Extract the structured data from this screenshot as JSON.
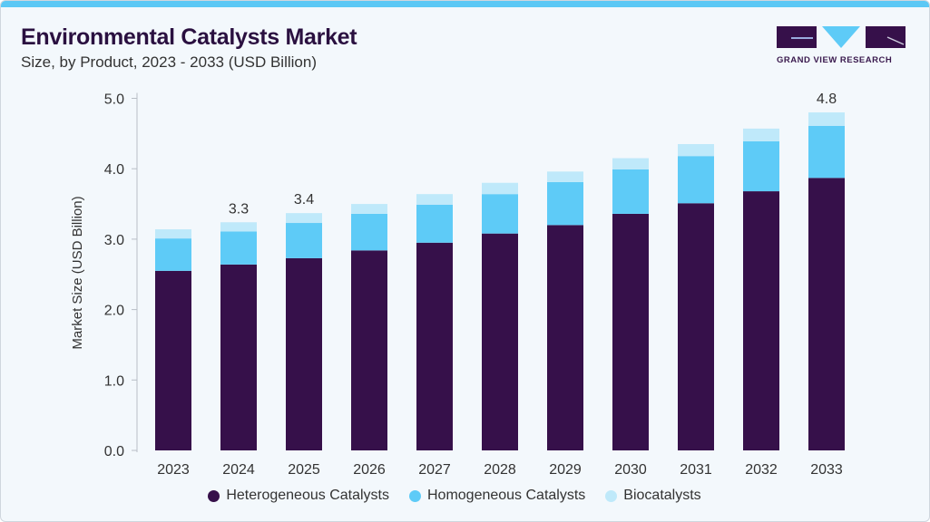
{
  "header": {
    "title": "Environmental Catalysts Market",
    "subtitle": "Size, by Product, 2023 - 2033 (USD Billion)"
  },
  "logo": {
    "text": "GRAND VIEW RESEARCH"
  },
  "chart_data": {
    "type": "bar",
    "stacked": true,
    "title": "Environmental Catalysts Market",
    "subtitle": "Size, by Product, 2023 - 2033 (USD Billion)",
    "xlabel": "",
    "ylabel": "Market Size (USD Billion)",
    "ylim": [
      0,
      5
    ],
    "yticks": [
      "0.0",
      "1.0",
      "2.0",
      "3.0",
      "4.0",
      "5.0"
    ],
    "categories": [
      "2023",
      "2024",
      "2025",
      "2026",
      "2027",
      "2028",
      "2029",
      "2030",
      "2031",
      "2032",
      "2033"
    ],
    "series": [
      {
        "name": "Heterogeneous Catalysts",
        "color": "#36104a",
        "values": [
          2.55,
          2.64,
          2.73,
          2.84,
          2.95,
          3.08,
          3.2,
          3.36,
          3.51,
          3.68,
          3.87
        ]
      },
      {
        "name": "Homogeneous Catalysts",
        "color": "#5ecbf7",
        "values": [
          0.46,
          0.47,
          0.5,
          0.52,
          0.54,
          0.56,
          0.61,
          0.63,
          0.67,
          0.71,
          0.74
        ]
      },
      {
        "name": "Biocatalysts",
        "color": "#bfe9fa",
        "values": [
          0.13,
          0.13,
          0.14,
          0.14,
          0.15,
          0.16,
          0.15,
          0.16,
          0.17,
          0.18,
          0.19
        ]
      }
    ],
    "data_labels": [
      {
        "category": "2024",
        "text": "3.3"
      },
      {
        "category": "2025",
        "text": "3.4"
      },
      {
        "category": "2033",
        "text": "4.8"
      }
    ],
    "grid": false,
    "legend_position": "bottom"
  }
}
